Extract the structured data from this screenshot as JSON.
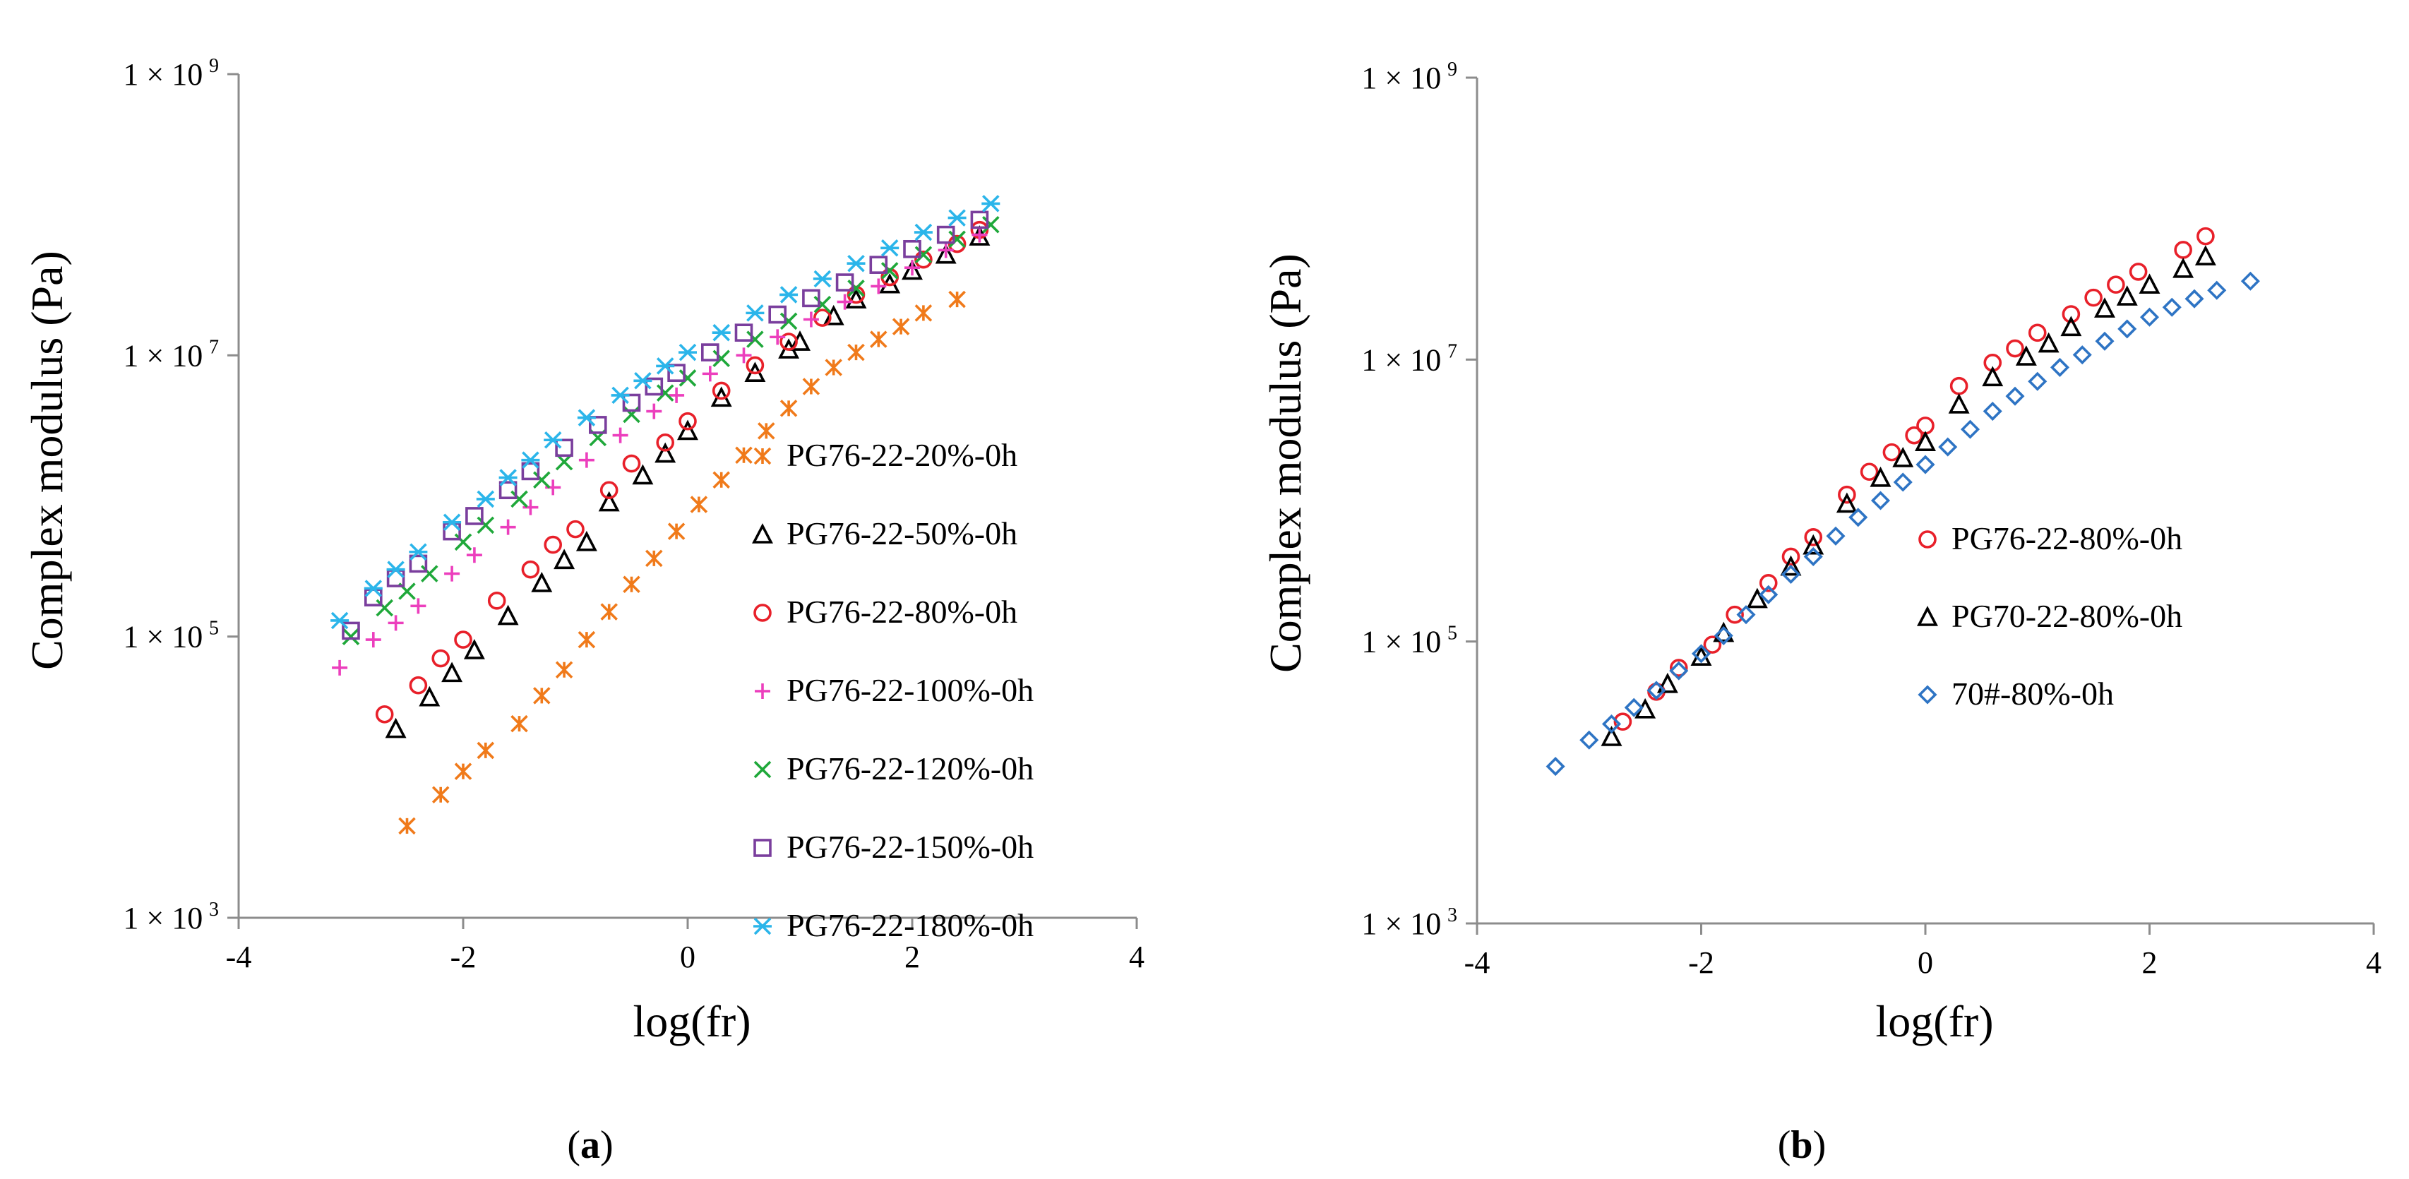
{
  "chart_data": [
    {
      "panel": "a",
      "type": "scatter",
      "panel_label": "(a)",
      "panel_letter": "a",
      "xlabel": "log(fr)",
      "ylabel": "Complex modulus (Pa)",
      "xlim": [
        -4,
        4
      ],
      "ylim": [
        1000,
        1000000000
      ],
      "yscale": "log",
      "x_ticks": [
        "-4",
        "-2",
        "0",
        "2",
        "4"
      ],
      "y_ticks": [
        {
          "base": "1 × 10",
          "exp": "9",
          "value": 1000000000
        },
        {
          "base": "1 × 10",
          "exp": "7",
          "value": 10000000
        },
        {
          "base": "1 × 10",
          "exp": "5",
          "value": 100000
        },
        {
          "base": "1 × 10",
          "exp": "3",
          "value": 1000
        }
      ],
      "legend_position": "lower-right",
      "series": [
        {
          "name": "PG76-22-20%-0h",
          "marker": "asterisk",
          "color": "#f07a1a",
          "x": [
            -2.5,
            -2.2,
            -2.0,
            -1.8,
            -1.5,
            -1.3,
            -1.1,
            -0.9,
            -0.7,
            -0.5,
            -0.3,
            -0.1,
            0.1,
            0.3,
            0.5,
            0.7,
            0.9,
            1.1,
            1.3,
            1.5,
            1.7,
            1.9,
            2.1,
            2.4
          ],
          "y": [
            4500,
            7500,
            11000,
            15500,
            24000,
            38000,
            58000,
            95000,
            150000,
            235000,
            360000,
            560000,
            870000,
            1300000,
            1950000,
            2900000,
            4200000,
            6000000,
            8200000,
            10500000,
            13000000,
            16000000,
            20000000,
            25000000
          ]
        },
        {
          "name": "PG76-22-50%-0h",
          "marker": "triangle",
          "color": "#000000",
          "x": [
            -2.6,
            -2.3,
            -2.1,
            -1.9,
            -1.6,
            -1.3,
            -1.1,
            -0.9,
            -0.7,
            -0.4,
            -0.2,
            0.0,
            0.3,
            0.6,
            0.9,
            1.0,
            1.3,
            1.5,
            1.8,
            2.0,
            2.3,
            2.6
          ],
          "y": [
            22000,
            37000,
            55000,
            80000,
            140000,
            240000,
            350000,
            470000,
            900000,
            1400000,
            2000000,
            2900000,
            5000000,
            7500000,
            11000000,
            12500000,
            19000000,
            25000000,
            32000000,
            40000000,
            52000000,
            70000000
          ]
        },
        {
          "name": "PG76-22-80%-0h",
          "marker": "circle",
          "color": "#e8202a",
          "x": [
            -2.7,
            -2.4,
            -2.2,
            -2.0,
            -1.7,
            -1.4,
            -1.2,
            -1.0,
            -0.7,
            -0.5,
            -0.2,
            0.0,
            0.3,
            0.6,
            0.9,
            1.2,
            1.5,
            1.8,
            2.1,
            2.4,
            2.6
          ],
          "y": [
            28000,
            45000,
            70000,
            95000,
            180000,
            300000,
            450000,
            580000,
            1100000,
            1700000,
            2400000,
            3400000,
            5600000,
            8500000,
            12500000,
            18500000,
            27000000,
            36000000,
            48000000,
            62000000,
            78000000
          ]
        },
        {
          "name": "PG76-22-100%-0h",
          "marker": "plus",
          "color": "#ec3fbd",
          "x": [
            -3.1,
            -2.8,
            -2.6,
            -2.4,
            -2.1,
            -1.9,
            -1.6,
            -1.4,
            -1.2,
            -0.9,
            -0.6,
            -0.3,
            -0.1,
            0.2,
            0.5,
            0.8,
            1.1,
            1.4,
            1.7,
            2.0,
            2.3,
            2.6
          ],
          "y": [
            60000,
            95000,
            125000,
            165000,
            280000,
            380000,
            600000,
            830000,
            1150000,
            1800000,
            2700000,
            4000000,
            5200000,
            7400000,
            10000000,
            13500000,
            18000000,
            24000000,
            31000000,
            42000000,
            56000000,
            72000000
          ]
        },
        {
          "name": "PG76-22-120%-0h",
          "marker": "x",
          "color": "#1fa83a",
          "x": [
            -3.0,
            -2.7,
            -2.5,
            -2.3,
            -2.0,
            -1.8,
            -1.5,
            -1.3,
            -1.1,
            -0.8,
            -0.5,
            -0.2,
            0.0,
            0.3,
            0.6,
            0.9,
            1.2,
            1.5,
            1.8,
            2.1,
            2.4,
            2.7
          ],
          "y": [
            100000,
            160000,
            210000,
            280000,
            470000,
            620000,
            950000,
            1300000,
            1750000,
            2600000,
            3800000,
            5400000,
            6900000,
            9500000,
            13000000,
            17500000,
            23000000,
            30000000,
            40000000,
            52000000,
            67000000,
            85000000
          ]
        },
        {
          "name": "PG76-22-150%-0h",
          "marker": "square",
          "color": "#7a3e9d",
          "x": [
            -3.0,
            -2.8,
            -2.6,
            -2.4,
            -2.1,
            -1.9,
            -1.6,
            -1.4,
            -1.1,
            -0.8,
            -0.5,
            -0.3,
            -0.1,
            0.2,
            0.5,
            0.8,
            1.1,
            1.4,
            1.7,
            2.0,
            2.3,
            2.6
          ],
          "y": [
            110000,
            190000,
            260000,
            330000,
            560000,
            720000,
            1100000,
            1500000,
            2200000,
            3200000,
            4600000,
            6000000,
            7500000,
            10500000,
            14500000,
            19500000,
            25500000,
            33000000,
            44000000,
            57000000,
            72000000,
            92000000
          ]
        },
        {
          "name": "PG76-22-180%-0h",
          "marker": "star",
          "color": "#2bb5ea",
          "x": [
            -3.1,
            -2.8,
            -2.6,
            -2.4,
            -2.1,
            -1.8,
            -1.6,
            -1.4,
            -1.2,
            -0.9,
            -0.6,
            -0.4,
            -0.2,
            0.0,
            0.3,
            0.6,
            0.9,
            1.2,
            1.5,
            1.8,
            2.1,
            2.4,
            2.7
          ],
          "y": [
            130000,
            220000,
            300000,
            400000,
            650000,
            950000,
            1350000,
            1800000,
            2500000,
            3600000,
            5200000,
            6600000,
            8400000,
            10500000,
            14500000,
            20000000,
            27000000,
            35000000,
            45000000,
            58000000,
            75000000,
            95000000,
            120000000
          ]
        }
      ]
    },
    {
      "panel": "b",
      "type": "scatter",
      "panel_label": "(b)",
      "panel_letter": "b",
      "xlabel": "log(fr)",
      "ylabel": "Complex modulus (Pa)",
      "xlim": [
        -4,
        4
      ],
      "ylim": [
        1000,
        1000000000
      ],
      "yscale": "log",
      "x_ticks": [
        "-4",
        "-2",
        "0",
        "2",
        "4"
      ],
      "y_ticks": [
        {
          "base": "1 × 10",
          "exp": "9",
          "value": 1000000000
        },
        {
          "base": "1 × 10",
          "exp": "7",
          "value": 10000000
        },
        {
          "base": "1 × 10",
          "exp": "5",
          "value": 100000
        },
        {
          "base": "1 × 10",
          "exp": "3",
          "value": 1000
        }
      ],
      "legend_position": "center-right",
      "series": [
        {
          "name": "PG76-22-80%-0h",
          "marker": "circle",
          "color": "#e8202a",
          "x": [
            -2.7,
            -2.4,
            -2.2,
            -1.9,
            -1.7,
            -1.4,
            -1.2,
            -1.0,
            -0.7,
            -0.5,
            -0.3,
            -0.1,
            0.0,
            0.3,
            0.6,
            0.8,
            1.0,
            1.3,
            1.5,
            1.7,
            1.9,
            2.3,
            2.5
          ],
          "y": [
            27000,
            44000,
            65000,
            95000,
            155000,
            260000,
            400000,
            550000,
            1100000,
            1600000,
            2200000,
            2900000,
            3400000,
            6500000,
            9500000,
            12000000,
            15500000,
            21000000,
            27500000,
            34000000,
            42000000,
            60000000,
            75000000
          ]
        },
        {
          "name": "PG70-22-80%-0h",
          "marker": "triangle",
          "color": "#000000",
          "x": [
            -2.8,
            -2.5,
            -2.3,
            -2.0,
            -1.8,
            -1.5,
            -1.2,
            -1.0,
            -0.7,
            -0.4,
            -0.2,
            0.0,
            0.3,
            0.6,
            0.9,
            1.1,
            1.3,
            1.6,
            1.8,
            2.0,
            2.3,
            2.5
          ],
          "y": [
            21000,
            33000,
            50000,
            78000,
            115000,
            200000,
            340000,
            480000,
            950000,
            1450000,
            2000000,
            2600000,
            4800000,
            7500000,
            10500000,
            13000000,
            17000000,
            23000000,
            28000000,
            34000000,
            44000000,
            54000000
          ]
        },
        {
          "name": "70#-80%-0h",
          "marker": "diamond",
          "color": "#2e74c4",
          "x": [
            -3.3,
            -3.0,
            -2.8,
            -2.6,
            -2.4,
            -2.2,
            -2.0,
            -1.8,
            -1.6,
            -1.4,
            -1.2,
            -1.0,
            -0.8,
            -0.6,
            -0.4,
            -0.2,
            0.0,
            0.2,
            0.4,
            0.6,
            0.8,
            1.0,
            1.2,
            1.4,
            1.6,
            1.8,
            2.0,
            2.2,
            2.4,
            2.6,
            2.9
          ],
          "y": [
            13000,
            20000,
            26000,
            34000,
            45000,
            62000,
            82000,
            110000,
            155000,
            215000,
            300000,
            400000,
            560000,
            760000,
            1000000,
            1350000,
            1800000,
            2400000,
            3200000,
            4300000,
            5500000,
            7000000,
            8800000,
            10800000,
            13500000,
            16500000,
            20000000,
            23500000,
            27000000,
            31000000,
            36000000
          ]
        }
      ]
    }
  ]
}
